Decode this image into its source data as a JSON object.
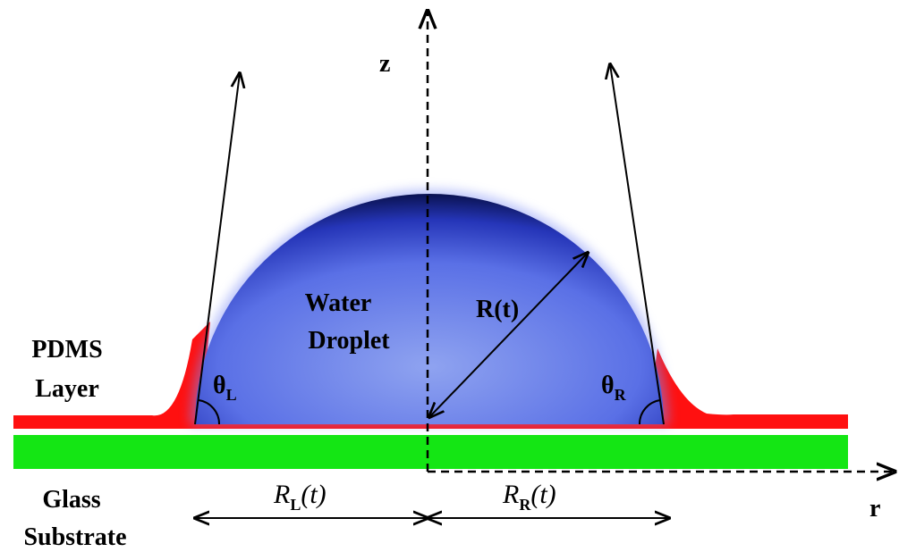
{
  "axes": {
    "z": "z",
    "r": "r"
  },
  "pdms_label": [
    "PDMS",
    "Layer"
  ],
  "glass_label": [
    "Glass",
    "Substrate"
  ],
  "droplet_label": [
    "Water",
    "Droplet"
  ],
  "radius_label": "R(t)",
  "theta_left": {
    "symbol": "θ",
    "subscript": "L"
  },
  "theta_right": {
    "symbol": "θ",
    "subscript": "R"
  },
  "radius_left": {
    "symbol": "R",
    "subscript": "L",
    "suffix": "(t)"
  },
  "radius_right": {
    "symbol": "R",
    "subscript": "R",
    "suffix": "(t)"
  }
}
